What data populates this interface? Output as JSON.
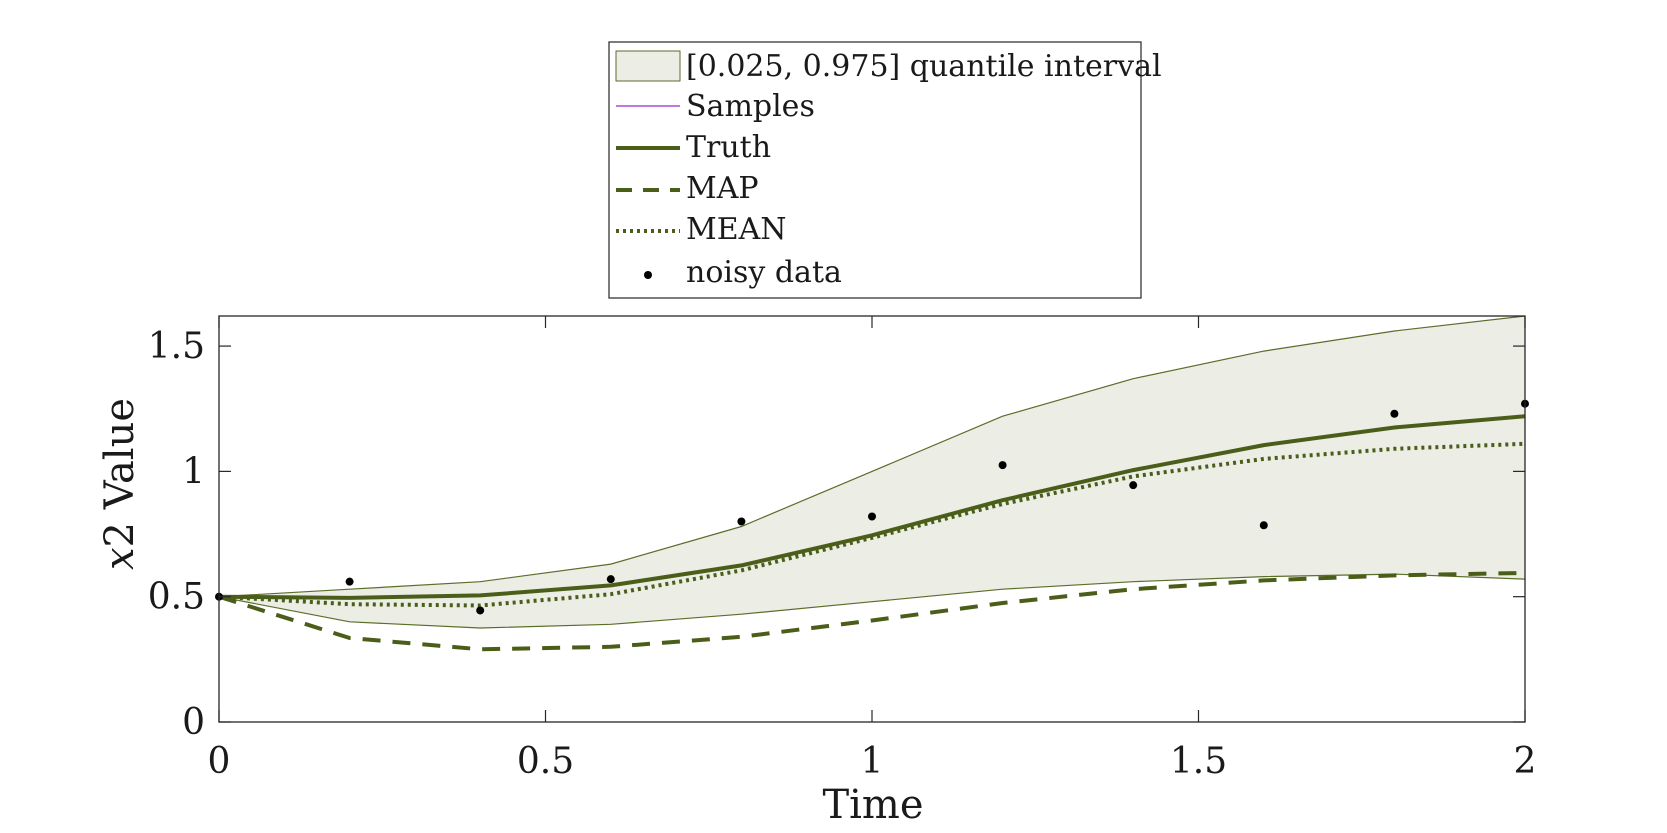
{
  "chart_data": {
    "type": "line",
    "xlabel": "Time",
    "ylabel_var": "x",
    "ylabel_rest": "2 Value",
    "xlim": [
      0,
      2
    ],
    "ylim": [
      0,
      1.62
    ],
    "xticks": [
      0,
      0.5,
      1,
      1.5,
      2
    ],
    "xtick_labels": [
      "0",
      "0.5",
      "1",
      "1.5",
      "2"
    ],
    "yticks": [
      0,
      0.5,
      1,
      1.5
    ],
    "ytick_labels": [
      "0",
      "0.5",
      "1",
      "1.5"
    ],
    "grid": false,
    "legend_placement": "top-center-outside",
    "x": [
      0,
      0.2,
      0.4,
      0.6,
      0.8,
      1.0,
      1.2,
      1.4,
      1.6,
      1.8,
      2.0
    ],
    "band": {
      "name": "[0.025, 0.975] quantile interval",
      "lower": [
        0.5,
        0.4,
        0.375,
        0.39,
        0.43,
        0.48,
        0.53,
        0.56,
        0.58,
        0.59,
        0.57
      ],
      "upper": [
        0.5,
        0.53,
        0.56,
        0.63,
        0.78,
        1.0,
        1.22,
        1.37,
        1.48,
        1.56,
        1.62
      ]
    },
    "series": [
      {
        "name": "Truth",
        "style": "solid",
        "values": [
          0.5,
          0.495,
          0.505,
          0.545,
          0.625,
          0.745,
          0.885,
          1.005,
          1.105,
          1.175,
          1.22
        ]
      },
      {
        "name": "MAP",
        "style": "dashed",
        "values": [
          0.5,
          0.335,
          0.29,
          0.3,
          0.34,
          0.405,
          0.475,
          0.53,
          0.565,
          0.585,
          0.595
        ]
      },
      {
        "name": "MEAN",
        "style": "dotted",
        "values": [
          0.5,
          0.47,
          0.465,
          0.51,
          0.605,
          0.735,
          0.87,
          0.98,
          1.05,
          1.09,
          1.11
        ]
      }
    ],
    "scatter": {
      "name": "noisy data",
      "points": [
        [
          0,
          0.5
        ],
        [
          0.2,
          0.56
        ],
        [
          0.4,
          0.445
        ],
        [
          0.6,
          0.57
        ],
        [
          0.8,
          0.8
        ],
        [
          1.0,
          0.82
        ],
        [
          1.2,
          1.025
        ],
        [
          1.4,
          0.945
        ],
        [
          1.6,
          0.785
        ],
        [
          1.8,
          1.23
        ],
        [
          2.0,
          1.27
        ]
      ]
    },
    "legend": [
      "[0.025, 0.975] quantile interval",
      "Samples",
      "Truth",
      "MAP",
      "MEAN",
      "noisy data"
    ],
    "colors": {
      "line": "#4a5e1a",
      "band_fill": "#eceee6",
      "band_edge": "#5a6e2a",
      "samples": "#a64fd6",
      "points": "#000000",
      "axes": "#262626"
    }
  }
}
